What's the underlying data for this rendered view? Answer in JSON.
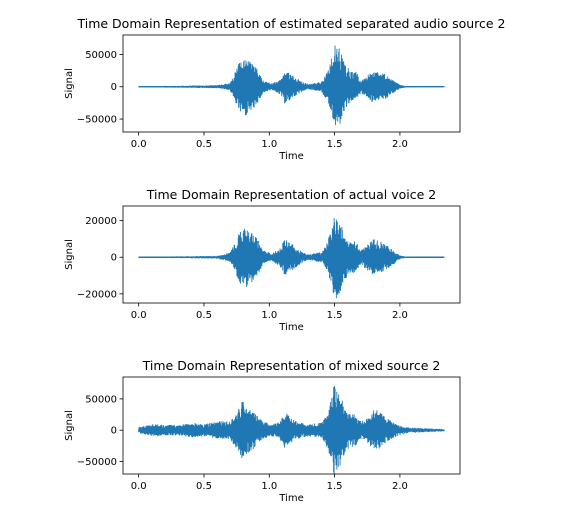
{
  "chart_data": [
    {
      "type": "line",
      "title": "Time Domain Representation of estimated separated audio source 2",
      "xlabel": "Time",
      "ylabel": "Signal",
      "xlim": [
        -0.12,
        2.46
      ],
      "ylim": [
        -70000,
        80000
      ],
      "xticks": [
        0.0,
        0.5,
        1.0,
        1.5,
        2.0
      ],
      "xtick_labels": [
        "0.0",
        "0.5",
        "1.0",
        "1.5",
        "2.0"
      ],
      "yticks": [
        -50000,
        0,
        50000
      ],
      "ytick_labels": [
        "−50000",
        "0",
        "50000"
      ],
      "series_color": "#1f77b4",
      "envelope": [
        [
          0.0,
          1000
        ],
        [
          0.3,
          1500
        ],
        [
          0.6,
          2500
        ],
        [
          0.7,
          6000
        ],
        [
          0.75,
          28000
        ],
        [
          0.78,
          42000
        ],
        [
          0.82,
          45000
        ],
        [
          0.88,
          35000
        ],
        [
          0.92,
          25000
        ],
        [
          0.95,
          10000
        ],
        [
          1.02,
          5000
        ],
        [
          1.08,
          12000
        ],
        [
          1.12,
          27000
        ],
        [
          1.18,
          18000
        ],
        [
          1.25,
          8000
        ],
        [
          1.3,
          4000
        ],
        [
          1.4,
          8000
        ],
        [
          1.45,
          25000
        ],
        [
          1.48,
          50000
        ],
        [
          1.5,
          75000
        ],
        [
          1.52,
          65000
        ],
        [
          1.55,
          55000
        ],
        [
          1.58,
          35000
        ],
        [
          1.62,
          25000
        ],
        [
          1.66,
          25000
        ],
        [
          1.7,
          10000
        ],
        [
          1.75,
          18000
        ],
        [
          1.8,
          26000
        ],
        [
          1.87,
          22000
        ],
        [
          1.95,
          10000
        ],
        [
          2.0,
          3000
        ],
        [
          2.05,
          1000
        ],
        [
          2.34,
          800
        ]
      ],
      "x_end": 2.34
    },
    {
      "type": "line",
      "title": "Time Domain Representation of actual voice 2",
      "xlabel": "Time",
      "ylabel": "Signal",
      "xlim": [
        -0.12,
        2.46
      ],
      "ylim": [
        -25000,
        28000
      ],
      "xticks": [
        0.0,
        0.5,
        1.0,
        1.5,
        2.0
      ],
      "xtick_labels": [
        "0.0",
        "0.5",
        "1.0",
        "1.5",
        "2.0"
      ],
      "yticks": [
        -20000,
        0,
        20000
      ],
      "ytick_labels": [
        "−20000",
        "0",
        "20000"
      ],
      "series_color": "#1f77b4",
      "envelope": [
        [
          0.0,
          300
        ],
        [
          0.3,
          500
        ],
        [
          0.6,
          800
        ],
        [
          0.7,
          2500
        ],
        [
          0.75,
          10000
        ],
        [
          0.78,
          16000
        ],
        [
          0.82,
          17000
        ],
        [
          0.88,
          13000
        ],
        [
          0.92,
          9000
        ],
        [
          0.95,
          4000
        ],
        [
          1.02,
          2000
        ],
        [
          1.08,
          5000
        ],
        [
          1.12,
          10000
        ],
        [
          1.18,
          7000
        ],
        [
          1.25,
          3000
        ],
        [
          1.3,
          1500
        ],
        [
          1.4,
          3000
        ],
        [
          1.45,
          9000
        ],
        [
          1.48,
          18000
        ],
        [
          1.5,
          25000
        ],
        [
          1.52,
          22000
        ],
        [
          1.55,
          18000
        ],
        [
          1.58,
          12000
        ],
        [
          1.62,
          9000
        ],
        [
          1.66,
          9000
        ],
        [
          1.7,
          4000
        ],
        [
          1.75,
          7000
        ],
        [
          1.8,
          10000
        ],
        [
          1.87,
          8000
        ],
        [
          1.95,
          4000
        ],
        [
          2.0,
          1000
        ],
        [
          2.05,
          300
        ],
        [
          2.34,
          200
        ]
      ],
      "x_end": 2.34
    },
    {
      "type": "line",
      "title": "Time Domain Representation of mixed source 2",
      "xlabel": "Time",
      "ylabel": "Signal",
      "xlim": [
        -0.12,
        2.46
      ],
      "ylim": [
        -70000,
        85000
      ],
      "xticks": [
        0.0,
        0.5,
        1.0,
        1.5,
        2.0
      ],
      "xtick_labels": [
        "0.0",
        "0.5",
        "1.0",
        "1.5",
        "2.0"
      ],
      "yticks": [
        -50000,
        0,
        50000
      ],
      "ytick_labels": [
        "−50000",
        "0",
        "50000"
      ],
      "series_color": "#1f77b4",
      "envelope": [
        [
          0.0,
          5000
        ],
        [
          0.1,
          10000
        ],
        [
          0.2,
          9000
        ],
        [
          0.3,
          8000
        ],
        [
          0.4,
          12000
        ],
        [
          0.5,
          10000
        ],
        [
          0.6,
          14000
        ],
        [
          0.7,
          15000
        ],
        [
          0.75,
          30000
        ],
        [
          0.79,
          48000
        ],
        [
          0.82,
          40000
        ],
        [
          0.88,
          30000
        ],
        [
          0.92,
          20000
        ],
        [
          0.95,
          14000
        ],
        [
          1.02,
          10000
        ],
        [
          1.08,
          14000
        ],
        [
          1.12,
          30000
        ],
        [
          1.18,
          18000
        ],
        [
          1.25,
          12000
        ],
        [
          1.3,
          10000
        ],
        [
          1.4,
          12000
        ],
        [
          1.45,
          30000
        ],
        [
          1.48,
          55000
        ],
        [
          1.5,
          80000
        ],
        [
          1.52,
          68000
        ],
        [
          1.55,
          55000
        ],
        [
          1.58,
          35000
        ],
        [
          1.62,
          28000
        ],
        [
          1.66,
          25000
        ],
        [
          1.7,
          14000
        ],
        [
          1.75,
          20000
        ],
        [
          1.8,
          35000
        ],
        [
          1.87,
          25000
        ],
        [
          1.95,
          12000
        ],
        [
          2.0,
          8000
        ],
        [
          2.05,
          5000
        ],
        [
          2.2,
          3000
        ],
        [
          2.34,
          2000
        ]
      ],
      "x_end": 2.34
    }
  ]
}
